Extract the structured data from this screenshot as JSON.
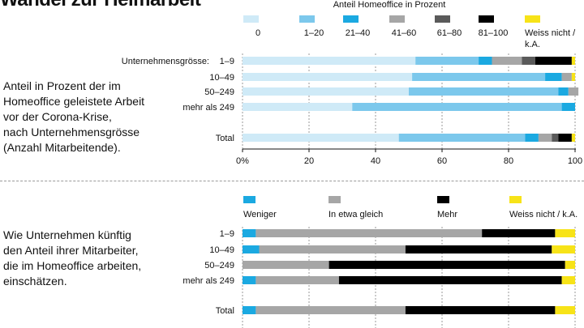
{
  "title": "Wandel zur Heimarbeit",
  "chart_data": [
    {
      "type": "bar",
      "orientation": "horizontal",
      "stacked": true,
      "description_lines": [
        "Anteil in Prozent der im",
        "Homeoffice geleistete Arbeit",
        "vor der Corona-Krise,",
        "nach Unternehmensgrösse",
        "(Anzahl Mitarbeitende)."
      ],
      "legend_title": "Anteil Homeoffice in Prozent",
      "axis_prefix": "Unternehmensgrösse:",
      "categories": [
        "1–9",
        "10–49",
        "50–249",
        "mehr als 249",
        "Total"
      ],
      "xlim": [
        0,
        100
      ],
      "xticks": [
        "0%",
        "20",
        "40",
        "60",
        "80",
        "100"
      ],
      "grid": true,
      "series": [
        {
          "name": "0",
          "color": "#cfeaf7",
          "values": [
            52,
            51,
            50,
            33,
            47
          ]
        },
        {
          "name": "1–20",
          "color": "#7cc8ec",
          "values": [
            19,
            40,
            45,
            63,
            38
          ]
        },
        {
          "name": "21–40",
          "color": "#1ba9e1",
          "values": [
            4,
            5,
            3,
            4,
            4
          ]
        },
        {
          "name": "41–60",
          "color": "#a6a6a6",
          "values": [
            9,
            3,
            3,
            0,
            4
          ]
        },
        {
          "name": "61–80",
          "color": "#5a5a5a",
          "values": [
            4,
            0,
            0,
            0,
            2
          ]
        },
        {
          "name": "81–100",
          "color": "#000000",
          "values": [
            11,
            0,
            0,
            0,
            4
          ]
        },
        {
          "name": "Weiss nicht / k.A.",
          "color": "#f7e318",
          "values": [
            1,
            1,
            0,
            0,
            1
          ]
        }
      ]
    },
    {
      "type": "bar",
      "orientation": "horizontal",
      "stacked": true,
      "description_lines": [
        "Wie Unternehmen künftig",
        "den Anteil ihrer Mitarbeiter,",
        "die im Homeoffice arbeiten,",
        "einschätzen."
      ],
      "categories": [
        "1–9",
        "10–49",
        "50–249",
        "mehr als 249",
        "Total"
      ],
      "xlim": [
        0,
        100
      ],
      "grid": true,
      "series": [
        {
          "name": "Weniger",
          "color": "#1ba9e1",
          "values": [
            4,
            5,
            0,
            4,
            4
          ]
        },
        {
          "name": "In etwa gleich",
          "color": "#a6a6a6",
          "values": [
            68,
            44,
            26,
            25,
            45
          ]
        },
        {
          "name": "Mehr",
          "color": "#000000",
          "values": [
            22,
            44,
            71,
            67,
            45
          ]
        },
        {
          "name": "Weiss nicht / k.A.",
          "color": "#f7e318",
          "values": [
            6,
            7,
            3,
            4,
            6
          ]
        }
      ]
    }
  ]
}
